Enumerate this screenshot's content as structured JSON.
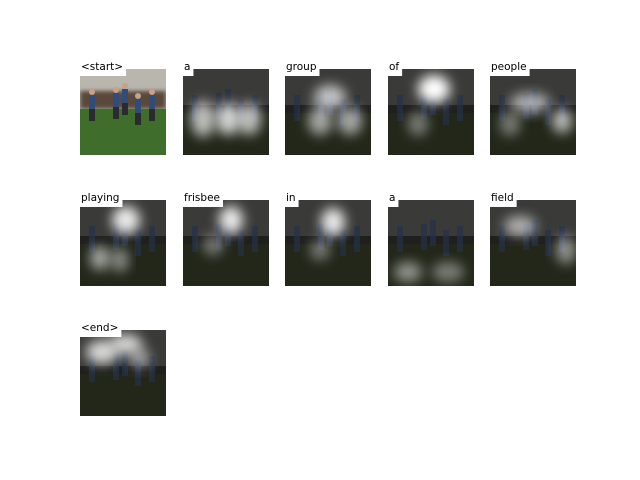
{
  "words": [
    "<start>",
    "a",
    "group",
    "of",
    "people",
    "playing",
    "frisbee",
    "in",
    "a",
    "field",
    "<end>"
  ]
}
